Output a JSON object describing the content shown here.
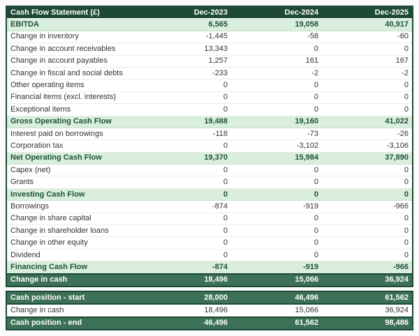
{
  "main_table": {
    "title": "Cash Flow Statement (£)",
    "columns": [
      "Dec-2023",
      "Dec-2024",
      "Dec-2025"
    ],
    "rows": [
      {
        "label": "EBITDA",
        "style": "subtotal",
        "values": [
          "6,565",
          "19,058",
          "40,917"
        ]
      },
      {
        "label": "Change in inventory",
        "style": "normal",
        "values": [
          "-1,445",
          "-58",
          "-60"
        ]
      },
      {
        "label": "Change in account receivables",
        "style": "normal",
        "values": [
          "13,343",
          "0",
          "0"
        ]
      },
      {
        "label": "Change in account payables",
        "style": "normal",
        "values": [
          "1,257",
          "161",
          "167"
        ]
      },
      {
        "label": "Change in fiscal and social debts",
        "style": "normal",
        "values": [
          "-233",
          "-2",
          "-2"
        ]
      },
      {
        "label": "Other operating items",
        "style": "normal",
        "values": [
          "0",
          "0",
          "0"
        ]
      },
      {
        "label": "Financial items (excl. interests)",
        "style": "normal",
        "values": [
          "0",
          "0",
          "0"
        ]
      },
      {
        "label": "Exceptional items",
        "style": "normal",
        "values": [
          "0",
          "0",
          "0"
        ]
      },
      {
        "label": "Gross Operating Cash Flow",
        "style": "subtotal",
        "values": [
          "19,488",
          "19,160",
          "41,022"
        ]
      },
      {
        "label": "Interest paid on borrowings",
        "style": "normal",
        "values": [
          "-118",
          "-73",
          "-26"
        ]
      },
      {
        "label": "Corporation tax",
        "style": "normal",
        "values": [
          "0",
          "-3,102",
          "-3,106"
        ]
      },
      {
        "label": "Net Operating Cash Flow",
        "style": "subtotal",
        "values": [
          "19,370",
          "15,984",
          "37,890"
        ]
      },
      {
        "label": "Capex (net)",
        "style": "normal",
        "values": [
          "0",
          "0",
          "0"
        ]
      },
      {
        "label": "Grants",
        "style": "normal",
        "values": [
          "0",
          "0",
          "0"
        ]
      },
      {
        "label": "Investing Cash Flow",
        "style": "subtotal",
        "values": [
          "0",
          "0",
          "0"
        ]
      },
      {
        "label": "Borrowings",
        "style": "normal",
        "values": [
          "-874",
          "-919",
          "-966"
        ]
      },
      {
        "label": "Change in share capital",
        "style": "normal",
        "values": [
          "0",
          "0",
          "0"
        ]
      },
      {
        "label": "Change in shareholder loans",
        "style": "normal",
        "values": [
          "0",
          "0",
          "0"
        ]
      },
      {
        "label": "Change in other equity",
        "style": "normal",
        "values": [
          "0",
          "0",
          "0"
        ]
      },
      {
        "label": "Dividend",
        "style": "normal",
        "values": [
          "0",
          "0",
          "0"
        ]
      },
      {
        "label": "Financing Cash Flow",
        "style": "subtotal",
        "values": [
          "-874",
          "-919",
          "-966"
        ]
      },
      {
        "label": "Change in cash",
        "style": "total",
        "values": [
          "18,496",
          "15,066",
          "36,924"
        ]
      }
    ]
  },
  "cash_position_table": {
    "rows": [
      {
        "label": "Cash position - start",
        "style": "total",
        "values": [
          "28,000",
          "46,496",
          "61,562"
        ]
      },
      {
        "label": "Change in cash",
        "style": "normal",
        "values": [
          "18,496",
          "15,066",
          "36,924"
        ]
      },
      {
        "label": "Cash position - end",
        "style": "total",
        "values": [
          "46,496",
          "61,562",
          "98,486"
        ]
      }
    ]
  },
  "colors": {
    "header_bg": "#1d4936",
    "header_text": "#ffffff",
    "subtotal_bg": "#d9eedd",
    "subtotal_text": "#1d5138",
    "total_bg": "#3d7157",
    "total_text": "#ffffff",
    "row_text": "#333333",
    "border": "#1d4936"
  }
}
